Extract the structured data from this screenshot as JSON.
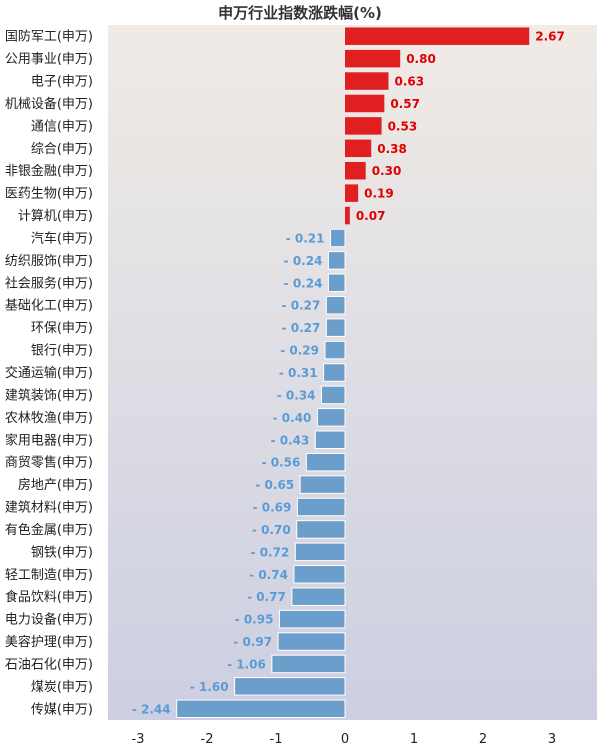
{
  "chart_data": {
    "type": "bar",
    "orientation": "horizontal",
    "title": "申万行业指数涨跌幅(%)",
    "categories": [
      "国防军工(申万)",
      "公用事业(申万)",
      "电子(申万)",
      "机械设备(申万)",
      "通信(申万)",
      "综合(申万)",
      "非银金融(申万)",
      "医药生物(申万)",
      "计算机(申万)",
      "汽车(申万)",
      "纺织服饰(申万)",
      "社会服务(申万)",
      "基础化工(申万)",
      "环保(申万)",
      "银行(申万)",
      "交通运输(申万)",
      "建筑装饰(申万)",
      "农林牧渔(申万)",
      "家用电器(申万)",
      "商贸零售(申万)",
      "房地产(申万)",
      "建筑材料(申万)",
      "有色金属(申万)",
      "钢铁(申万)",
      "轻工制造(申万)",
      "食品饮料(申万)",
      "电力设备(申万)",
      "美容护理(申万)",
      "石油石化(申万)",
      "煤炭(申万)",
      "传媒(申万)"
    ],
    "values": [
      2.67,
      0.8,
      0.63,
      0.57,
      0.53,
      0.38,
      0.3,
      0.19,
      0.07,
      -0.21,
      -0.24,
      -0.24,
      -0.27,
      -0.27,
      -0.29,
      -0.31,
      -0.34,
      -0.4,
      -0.43,
      -0.56,
      -0.65,
      -0.69,
      -0.7,
      -0.72,
      -0.74,
      -0.77,
      -0.95,
      -0.97,
      -1.06,
      -1.6,
      -2.44
    ],
    "value_labels": [
      "2.67",
      "0.80",
      "0.63",
      "0.57",
      "0.53",
      "0.38",
      "0.30",
      "0.19",
      "0.07",
      "- 0.21",
      "- 0.24",
      "- 0.24",
      "- 0.27",
      "- 0.27",
      "- 0.29",
      "- 0.31",
      "- 0.34",
      "- 0.40",
      "- 0.43",
      "- 0.56",
      "- 0.65",
      "- 0.69",
      "- 0.70",
      "- 0.72",
      "- 0.74",
      "- 0.77",
      "- 0.95",
      "- 0.97",
      "- 1.06",
      "- 1.60",
      "- 2.44"
    ],
    "xticks": [
      -3,
      -2,
      -1,
      0,
      1,
      2,
      3
    ],
    "xlim": [
      -3.3,
      3.65
    ],
    "xlabel": "",
    "ylabel": "",
    "grid": false,
    "colors": {
      "positive": "#e02020",
      "negative": "#6b9ecb",
      "positive_label": "#e00000",
      "negative_label": "#5b9bd5",
      "background_top": "#f0ebe5",
      "background_bottom": "#cccfe2"
    }
  }
}
